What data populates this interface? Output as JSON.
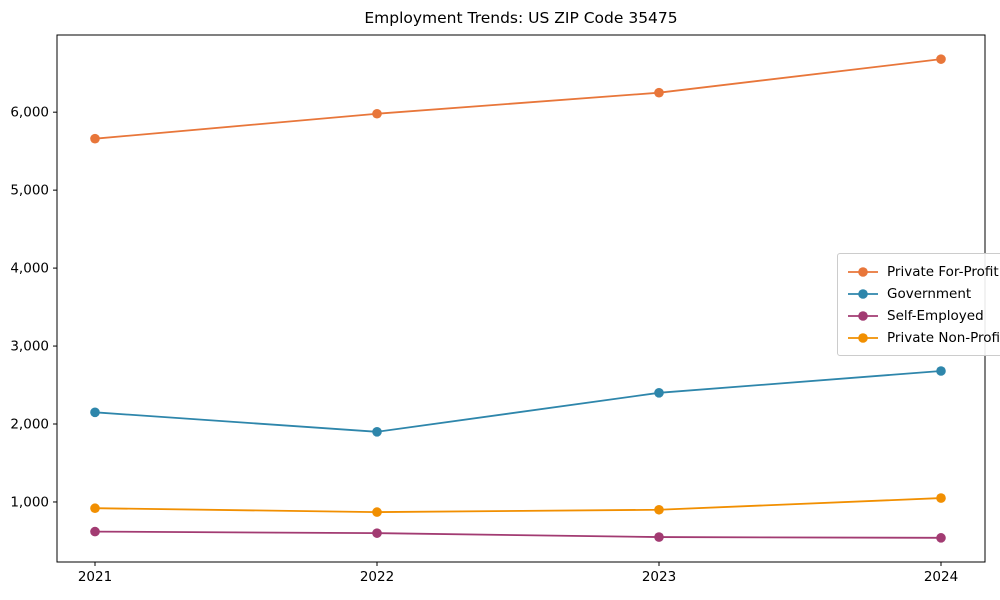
{
  "chart_data": {
    "type": "line",
    "title": "Employment Trends: US ZIP Code 35475",
    "categories": [
      "2021",
      "2022",
      "2023",
      "2024"
    ],
    "series": [
      {
        "name": "Private For-Profit",
        "color": "#E8763A",
        "values": [
          5660,
          5980,
          6250,
          6680
        ]
      },
      {
        "name": "Government",
        "color": "#2E86AB",
        "values": [
          2150,
          1900,
          2400,
          2680
        ]
      },
      {
        "name": "Self-Employed",
        "color": "#A23B72",
        "values": [
          620,
          600,
          550,
          540
        ]
      },
      {
        "name": "Private Non-Profit",
        "color": "#F18F01",
        "values": [
          920,
          870,
          900,
          1050
        ]
      }
    ],
    "xlabel": "",
    "ylabel": "",
    "ylim": [
      230,
      6990
    ],
    "yticks": [
      1000,
      2000,
      3000,
      4000,
      5000,
      6000
    ],
    "ytick_labels": [
      "1,000",
      "2,000",
      "3,000",
      "4,000",
      "5,000",
      "6,000"
    ],
    "grid": false,
    "legend_position": "center right",
    "marker": "o",
    "frame_color": "#000000",
    "background_color": "#ffffff"
  }
}
